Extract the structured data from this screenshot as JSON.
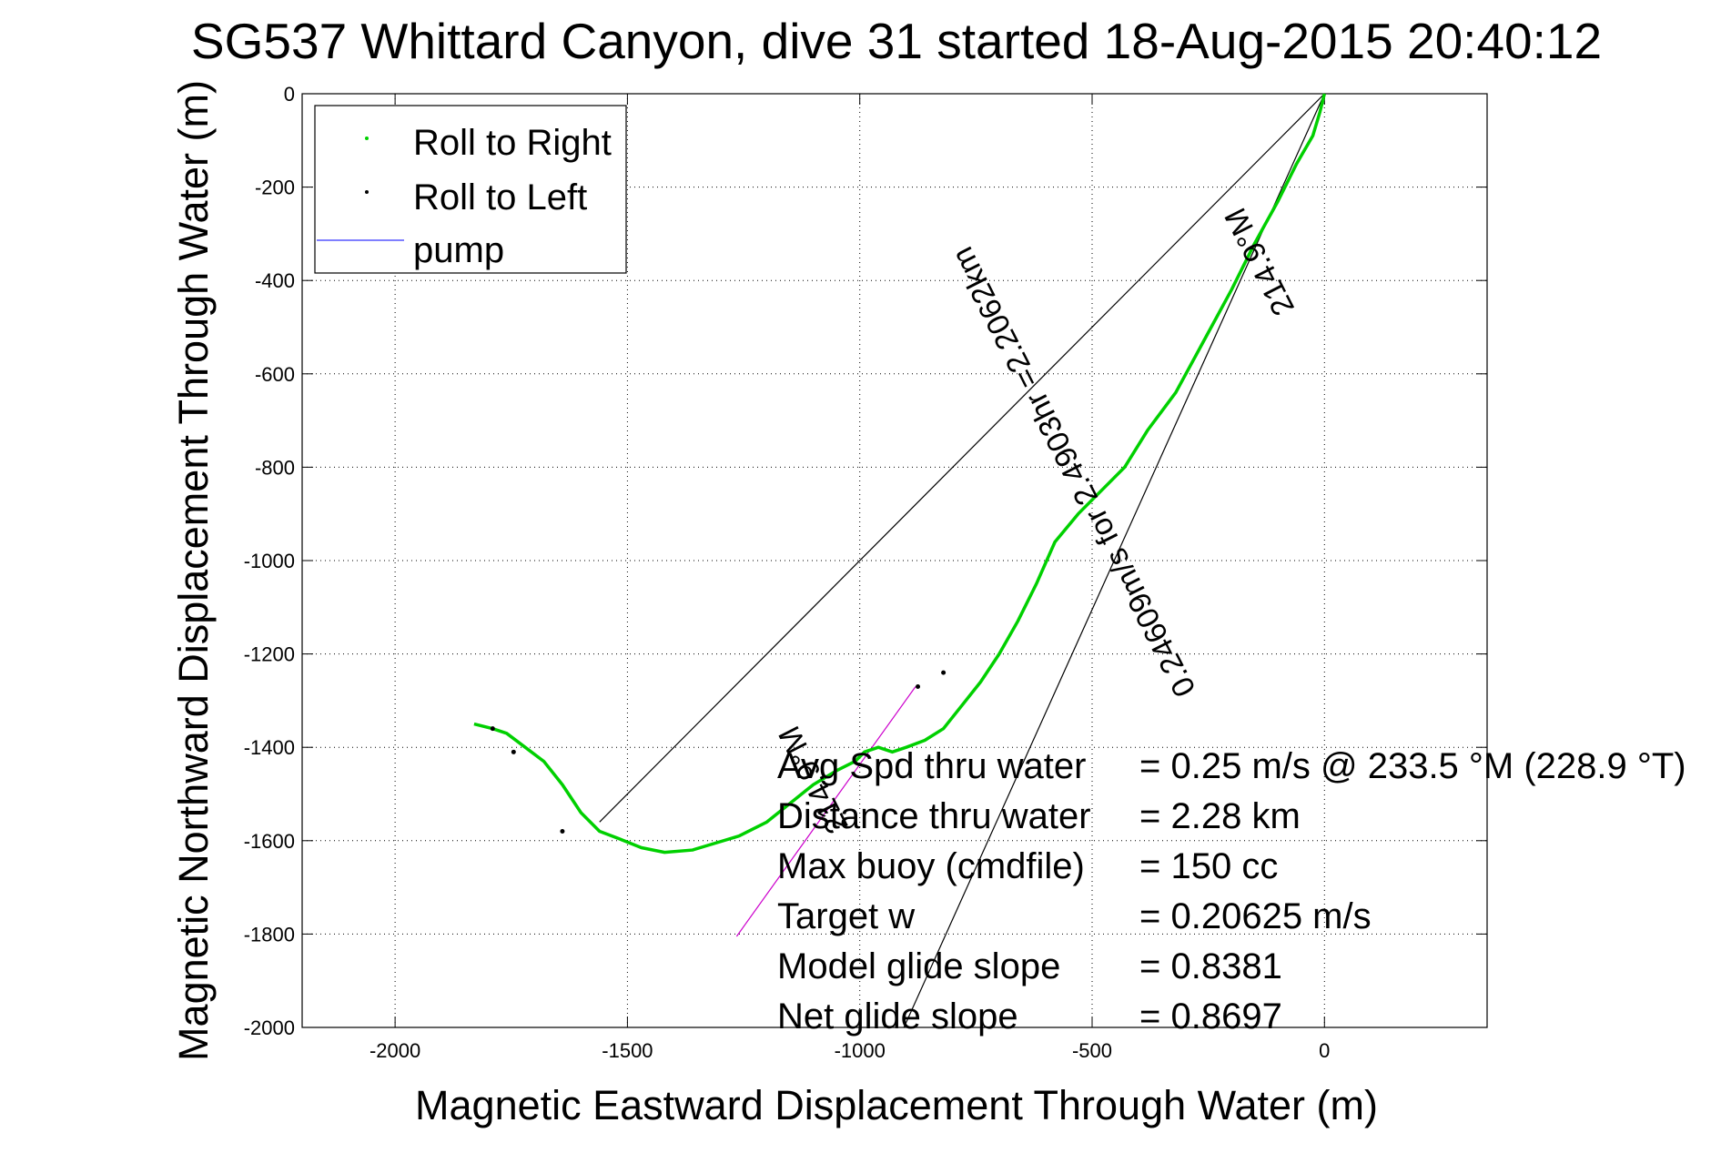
{
  "chart_data": {
    "type": "line",
    "title": "SG537 Whittard Canyon, dive 31 started 18-Aug-2015 20:40:12",
    "xlabel": "Magnetic Eastward Displacement Through Water (m)",
    "ylabel": "Magnetic Northward Displacement Through Water (m)",
    "xlim": [
      -2200,
      350
    ],
    "ylim": [
      -2000,
      0
    ],
    "xticks": [
      -2000,
      -1500,
      -1000,
      -500,
      0
    ],
    "yticks": [
      0,
      -200,
      -400,
      -600,
      -800,
      -1000,
      -1200,
      -1400,
      -1600,
      -1800,
      -2000
    ],
    "grid": true,
    "legend": {
      "placement": "top-left",
      "entries": [
        "Roll to Right",
        "Roll to Left",
        "pump"
      ]
    },
    "series": [
      {
        "name": "Roll to Right",
        "color": "#00d000",
        "x": [
          0,
          -10,
          -25,
          -60,
          -100,
          -150,
          -200,
          -260,
          -320,
          -380,
          -430,
          -480,
          -530,
          -580,
          -620,
          -660,
          -700,
          -740,
          -780,
          -820,
          -860,
          -900,
          -930,
          -960,
          -990,
          -1010,
          -1050,
          -1100,
          -1150,
          -1200,
          -1260,
          -1310,
          -1360,
          -1420,
          -1470,
          -1520,
          -1560,
          -1600,
          -1640,
          -1680,
          -1720,
          -1760,
          -1790,
          -1830
        ],
        "y": [
          0,
          -40,
          -90,
          -150,
          -230,
          -320,
          -420,
          -530,
          -640,
          -720,
          -800,
          -850,
          -900,
          -960,
          -1050,
          -1130,
          -1200,
          -1260,
          -1310,
          -1360,
          -1385,
          -1400,
          -1410,
          -1400,
          -1410,
          -1430,
          -1450,
          -1480,
          -1520,
          -1560,
          -1590,
          -1605,
          -1620,
          -1625,
          -1615,
          -1595,
          -1580,
          -1540,
          -1480,
          -1430,
          -1400,
          -1370,
          -1360,
          -1350
        ]
      },
      {
        "name": "Roll to Left",
        "color": "#000000",
        "x": [
          -1790,
          -1745,
          -1640,
          -875,
          -820
        ],
        "y": [
          -1360,
          -1410,
          -1580,
          -1270,
          -1240
        ]
      }
    ],
    "reference_lines": [
      {
        "name": "pump",
        "color": "#cc00cc",
        "x": [
          -1265,
          -880
        ],
        "y": [
          -1805,
          -1270
        ]
      },
      {
        "name": "heading-line-upper",
        "color": "#000000",
        "x": [
          0,
          -1560
        ],
        "y": [
          0,
          -1560
        ]
      },
      {
        "name": "heading-line-lower",
        "color": "#000000",
        "x": [
          0,
          -905
        ],
        "y": [
          0,
          -2000
        ]
      }
    ],
    "annotations": [
      {
        "text": "214.9°M",
        "rotated": true
      },
      {
        "text": "0.24609m/s for 2.4903hr =2.2062km",
        "rotated": true
      },
      {
        "text": "214.9°M",
        "rotated": true
      }
    ],
    "summary_rows": [
      {
        "label": "Avg Spd thru water",
        "value": "=  0.25 m/s @ 233.5 °M (228.9 °T)"
      },
      {
        "label": "Distance thru water",
        "value": "=  2.28 km"
      },
      {
        "label": "Max buoy (cmdfile)",
        "value": "= 150 cc"
      },
      {
        "label": "Target w",
        "value": "= 0.20625 m/s"
      },
      {
        "label": "Model glide slope",
        "value": "= 0.8381"
      },
      {
        "label": "Net glide slope",
        "value": "= 0.8697"
      }
    ]
  }
}
